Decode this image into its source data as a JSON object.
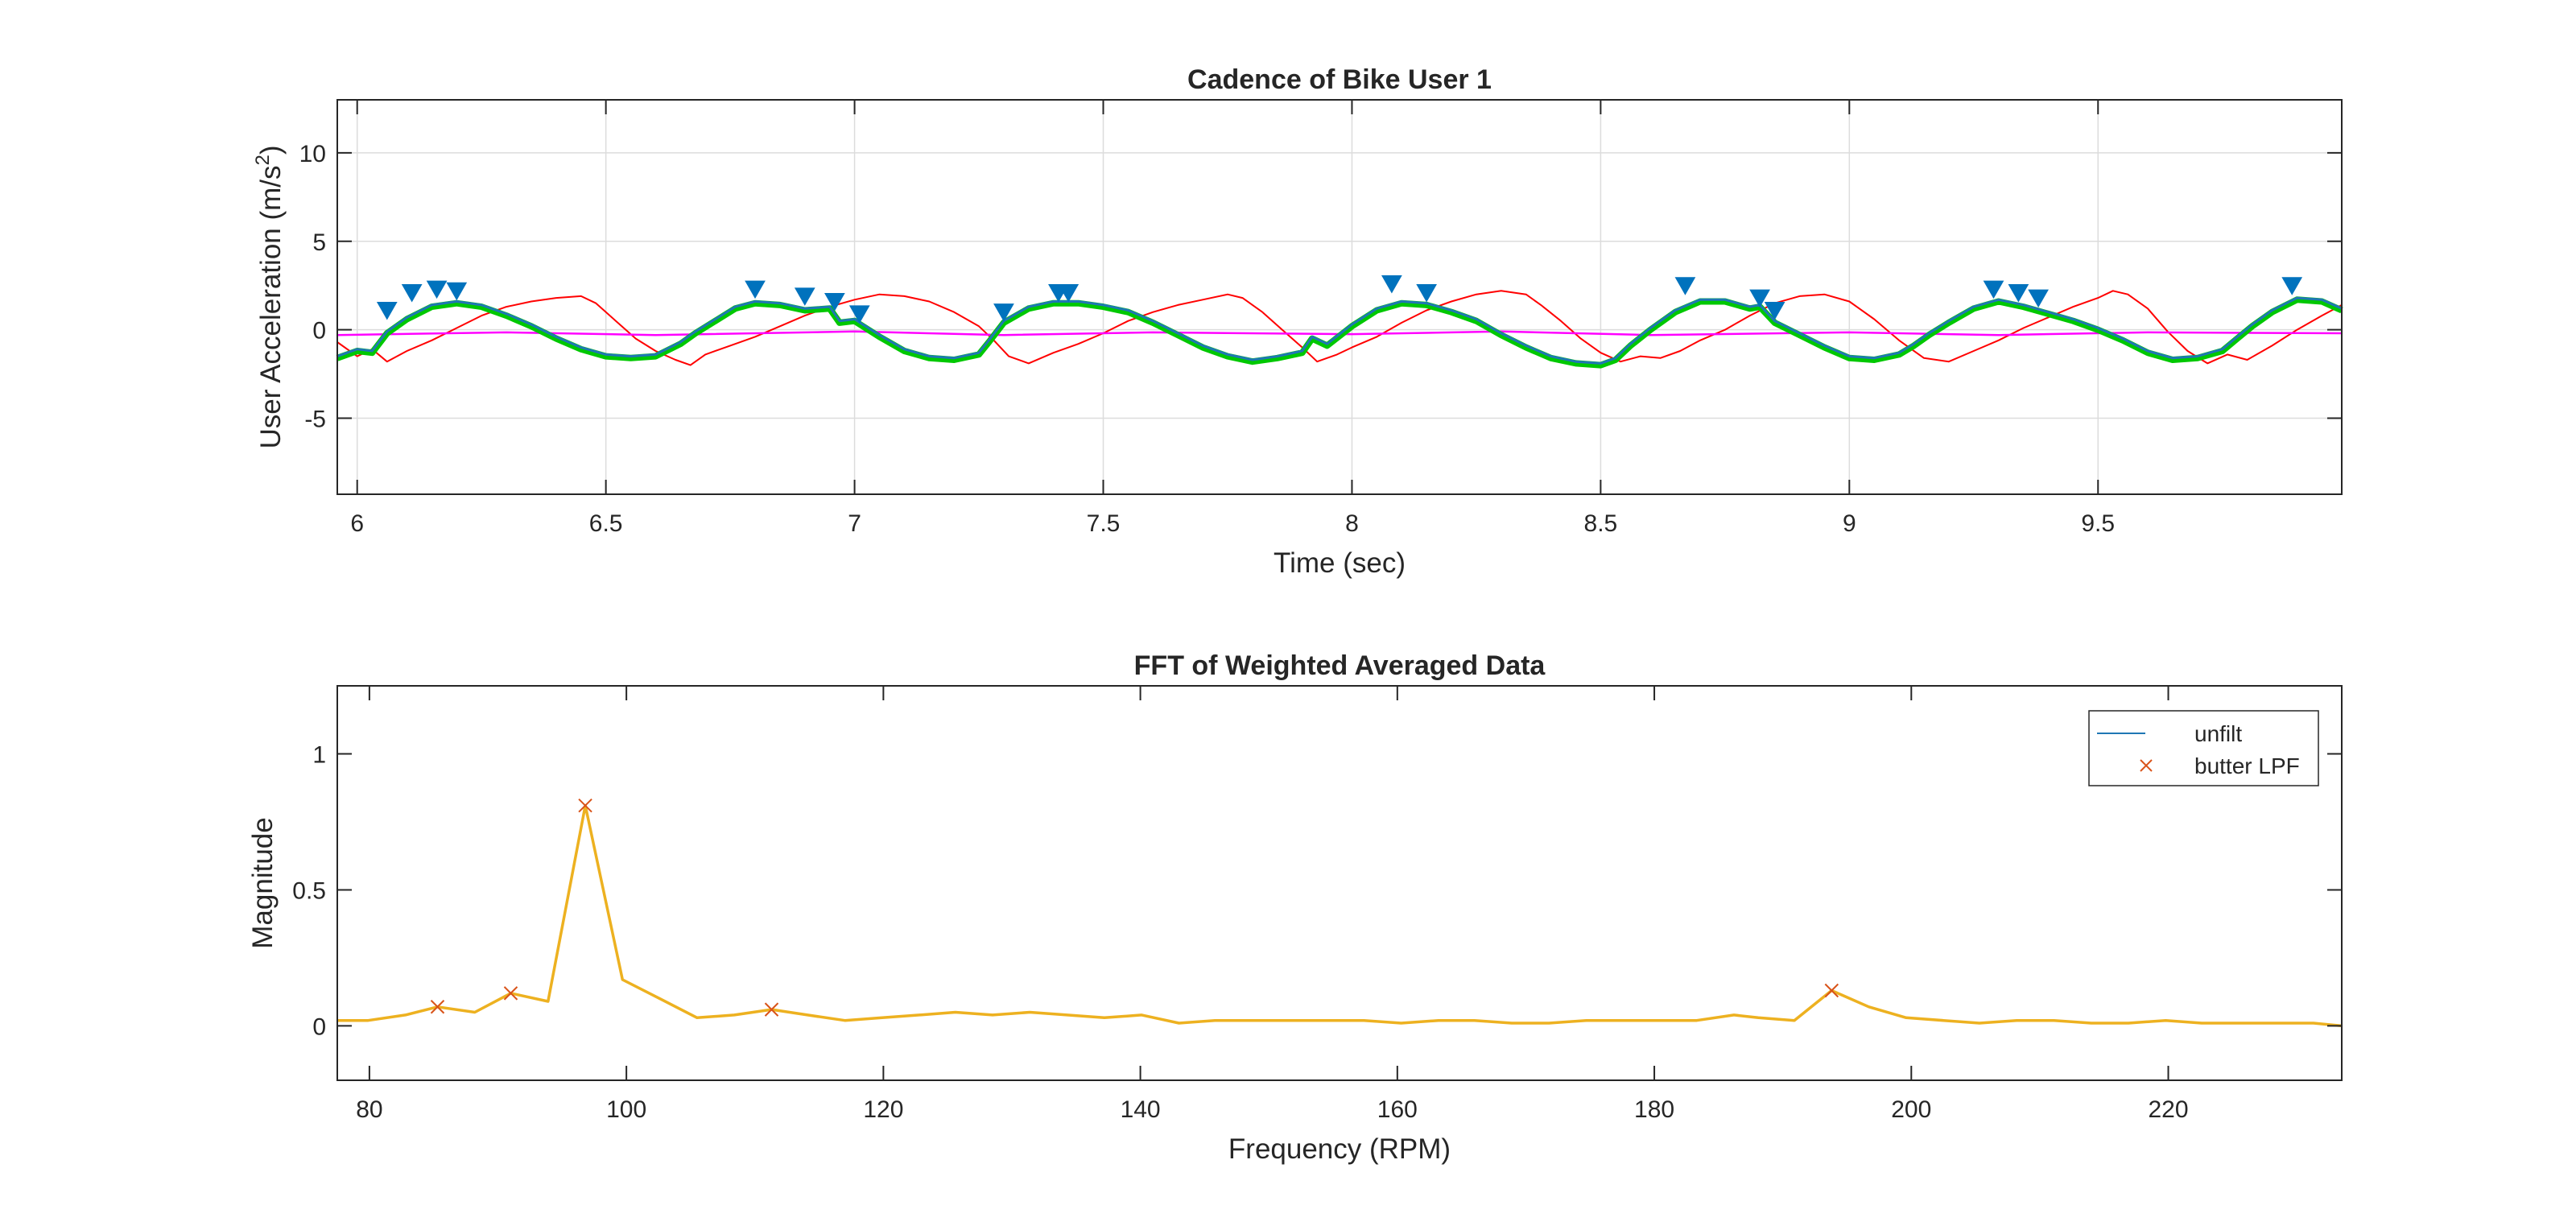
{
  "chart_data": [
    {
      "type": "line",
      "title": "Cadence of Bike User 1",
      "xlabel": "Time (sec)",
      "ylabel": "User Acceleration (m/s",
      "ylabel_sup": "2",
      "ylabel_end": ")",
      "xlim": [
        5.96,
        9.99
      ],
      "ylim": [
        -9.3,
        13
      ],
      "xticks": [
        6,
        6.5,
        7,
        7.5,
        8,
        8.5,
        9,
        9.5
      ],
      "xtick_labels": [
        "6",
        "6.5",
        "7",
        "7.5",
        "8",
        "8.5",
        "9",
        "9.5"
      ],
      "yticks": [
        -5,
        0,
        5,
        10
      ],
      "ytick_labels": [
        "-5",
        "0",
        "5",
        "10"
      ],
      "grid": true,
      "series": [
        {
          "color": "#ff0000",
          "x": [
            5.96,
            6.0,
            6.03,
            6.06,
            6.1,
            6.15,
            6.2,
            6.25,
            6.3,
            6.35,
            6.4,
            6.45,
            6.48,
            6.52,
            6.56,
            6.6,
            6.64,
            6.67,
            6.7,
            6.75,
            6.8,
            6.85,
            6.9,
            6.95,
            7.0,
            7.05,
            7.1,
            7.15,
            7.2,
            7.25,
            7.28,
            7.31,
            7.35,
            7.4,
            7.45,
            7.5,
            7.55,
            7.6,
            7.65,
            7.7,
            7.75,
            7.78,
            7.82,
            7.86,
            7.9,
            7.93,
            7.97,
            8.0,
            8.05,
            8.1,
            8.15,
            8.2,
            8.25,
            8.3,
            8.35,
            8.38,
            8.42,
            8.46,
            8.5,
            8.54,
            8.58,
            8.62,
            8.66,
            8.7,
            8.75,
            8.8,
            8.85,
            8.9,
            8.95,
            9.0,
            9.05,
            9.1,
            9.15,
            9.2,
            9.25,
            9.3,
            9.35,
            9.4,
            9.45,
            9.5,
            9.53,
            9.56,
            9.6,
            9.64,
            9.68,
            9.72,
            9.76,
            9.8,
            9.85,
            9.9,
            9.95,
            9.99
          ],
          "y": [
            -0.7,
            -1.5,
            -1.1,
            -1.8,
            -1.2,
            -0.6,
            0.1,
            0.8,
            1.3,
            1.6,
            1.8,
            1.9,
            1.5,
            0.5,
            -0.5,
            -1.2,
            -1.7,
            -2.0,
            -1.4,
            -0.9,
            -0.4,
            0.2,
            0.8,
            1.3,
            1.7,
            2.0,
            1.9,
            1.6,
            1.0,
            0.2,
            -0.6,
            -1.5,
            -1.9,
            -1.3,
            -0.8,
            -0.2,
            0.5,
            1.0,
            1.4,
            1.7,
            2.0,
            1.8,
            1.0,
            0.0,
            -1.0,
            -1.8,
            -1.4,
            -1.0,
            -0.4,
            0.4,
            1.1,
            1.6,
            2.0,
            2.2,
            2.0,
            1.4,
            0.5,
            -0.5,
            -1.3,
            -1.8,
            -1.5,
            -1.6,
            -1.2,
            -0.6,
            0.0,
            0.8,
            1.5,
            1.9,
            2.0,
            1.6,
            0.6,
            -0.6,
            -1.6,
            -1.8,
            -1.2,
            -0.6,
            0.1,
            0.7,
            1.3,
            1.8,
            2.2,
            2.0,
            1.2,
            -0.1,
            -1.2,
            -1.9,
            -1.4,
            -1.7,
            -0.9,
            0.0,
            0.8,
            1.4
          ]
        },
        {
          "color": "#ff00ff",
          "x": [
            5.96,
            6.3,
            6.6,
            7.0,
            7.3,
            7.6,
            8.0,
            8.3,
            8.6,
            9.0,
            9.3,
            9.6,
            9.99
          ],
          "y": [
            -0.3,
            -0.15,
            -0.3,
            -0.1,
            -0.3,
            -0.15,
            -0.25,
            -0.1,
            -0.3,
            -0.15,
            -0.3,
            -0.15,
            -0.2
          ]
        },
        {
          "color": "#00c800",
          "x": [
            5.96,
            6.0,
            6.03,
            6.06,
            6.1,
            6.15,
            6.2,
            6.25,
            6.3,
            6.35,
            6.4,
            6.45,
            6.5,
            6.55,
            6.6,
            6.65,
            6.68,
            6.72,
            6.76,
            6.8,
            6.85,
            6.9,
            6.95,
            6.97,
            7.0,
            7.05,
            7.1,
            7.15,
            7.2,
            7.25,
            7.27,
            7.3,
            7.35,
            7.4,
            7.45,
            7.5,
            7.55,
            7.6,
            7.65,
            7.7,
            7.75,
            7.8,
            7.85,
            7.9,
            7.92,
            7.95,
            8.0,
            8.05,
            8.1,
            8.15,
            8.2,
            8.25,
            8.3,
            8.35,
            8.4,
            8.45,
            8.5,
            8.53,
            8.56,
            8.6,
            8.65,
            8.7,
            8.75,
            8.8,
            8.82,
            8.85,
            8.9,
            8.95,
            9.0,
            9.05,
            9.1,
            9.13,
            9.16,
            9.2,
            9.25,
            9.3,
            9.35,
            9.4,
            9.45,
            9.5,
            9.55,
            9.6,
            9.65,
            9.7,
            9.75,
            9.78,
            9.81,
            9.85,
            9.9,
            9.95,
            9.99
          ],
          "y": [
            -1.6,
            -1.2,
            -1.3,
            -0.2,
            0.6,
            1.3,
            1.5,
            1.3,
            0.8,
            0.2,
            -0.5,
            -1.1,
            -1.5,
            -1.6,
            -1.5,
            -0.8,
            -0.2,
            0.5,
            1.2,
            1.5,
            1.4,
            1.1,
            1.2,
            0.4,
            0.5,
            -0.4,
            -1.2,
            -1.6,
            -1.7,
            -1.4,
            -0.7,
            0.4,
            1.2,
            1.5,
            1.5,
            1.3,
            1.0,
            0.4,
            -0.3,
            -1.0,
            -1.5,
            -1.8,
            -1.6,
            -1.3,
            -0.5,
            -0.9,
            0.2,
            1.1,
            1.5,
            1.4,
            1.0,
            0.5,
            -0.3,
            -1.0,
            -1.6,
            -1.9,
            -2.0,
            -1.7,
            -0.9,
            0.0,
            1.0,
            1.6,
            1.6,
            1.2,
            1.3,
            0.4,
            -0.3,
            -1.0,
            -1.6,
            -1.7,
            -1.4,
            -0.9,
            -0.3,
            0.4,
            1.2,
            1.6,
            1.3,
            0.9,
            0.5,
            0.0,
            -0.6,
            -1.3,
            -1.7,
            -1.6,
            -1.2,
            -0.5,
            0.2,
            1.0,
            1.7,
            1.6,
            1.1
          ]
        },
        {
          "color": "#1f77b4",
          "x": [
            5.96,
            6.0,
            6.03,
            6.06,
            6.1,
            6.15,
            6.2,
            6.25,
            6.3,
            6.35,
            6.4,
            6.45,
            6.5,
            6.55,
            6.6,
            6.65,
            6.68,
            6.72,
            6.76,
            6.8,
            6.85,
            6.9,
            6.95,
            6.97,
            7.0,
            7.05,
            7.1,
            7.15,
            7.2,
            7.25,
            7.27,
            7.3,
            7.35,
            7.4,
            7.45,
            7.5,
            7.55,
            7.6,
            7.65,
            7.7,
            7.75,
            7.8,
            7.85,
            7.9,
            7.92,
            7.95,
            8.0,
            8.05,
            8.1,
            8.15,
            8.2,
            8.25,
            8.3,
            8.35,
            8.4,
            8.45,
            8.5,
            8.53,
            8.56,
            8.6,
            8.65,
            8.7,
            8.75,
            8.8,
            8.82,
            8.85,
            8.9,
            8.95,
            9.0,
            9.05,
            9.1,
            9.13,
            9.16,
            9.2,
            9.25,
            9.3,
            9.35,
            9.4,
            9.45,
            9.5,
            9.55,
            9.6,
            9.65,
            9.7,
            9.75,
            9.78,
            9.81,
            9.85,
            9.9,
            9.95,
            9.99
          ],
          "y": [
            -1.5,
            -1.1,
            -1.2,
            -0.1,
            0.7,
            1.4,
            1.6,
            1.4,
            0.9,
            0.3,
            -0.4,
            -1.0,
            -1.4,
            -1.5,
            -1.4,
            -0.7,
            -0.1,
            0.6,
            1.3,
            1.6,
            1.5,
            1.2,
            1.3,
            0.5,
            0.6,
            -0.3,
            -1.1,
            -1.5,
            -1.6,
            -1.3,
            -0.6,
            0.5,
            1.3,
            1.6,
            1.6,
            1.4,
            1.1,
            0.5,
            -0.2,
            -0.9,
            -1.4,
            -1.7,
            -1.5,
            -1.2,
            -0.4,
            -0.8,
            0.3,
            1.2,
            1.6,
            1.5,
            1.1,
            0.6,
            -0.2,
            -0.9,
            -1.5,
            -1.8,
            -1.9,
            -1.6,
            -0.8,
            0.1,
            1.1,
            1.7,
            1.7,
            1.3,
            1.4,
            0.5,
            -0.2,
            -0.9,
            -1.5,
            -1.6,
            -1.3,
            -0.8,
            -0.2,
            0.5,
            1.3,
            1.7,
            1.4,
            1.0,
            0.6,
            0.1,
            -0.5,
            -1.2,
            -1.6,
            -1.5,
            -1.1,
            -0.4,
            0.3,
            1.1,
            1.8,
            1.7,
            1.2
          ]
        }
      ],
      "peaks": {
        "marker": "triangle-down",
        "color": "#0072bd",
        "x": [
          6.06,
          6.11,
          6.16,
          6.2,
          6.8,
          6.9,
          6.96,
          7.01,
          7.3,
          7.41,
          7.43,
          8.08,
          8.15,
          8.67,
          8.82,
          8.85,
          9.29,
          9.34,
          9.38,
          9.89
        ],
        "y": [
          1.1,
          2.1,
          2.3,
          2.2,
          2.3,
          1.9,
          1.6,
          0.9,
          1.0,
          2.1,
          2.1,
          2.6,
          2.1,
          2.5,
          1.8,
          1.1,
          2.3,
          2.1,
          1.8,
          2.5
        ]
      }
    },
    {
      "type": "line",
      "title": "FFT of Weighted Averaged Data",
      "xlabel": "Frequency (RPM)",
      "ylabel": "Magnitude",
      "xlim": [
        77.5,
        233.5
      ],
      "ylim": [
        -0.2,
        1.25
      ],
      "xticks": [
        80,
        100,
        120,
        140,
        160,
        180,
        200,
        220
      ],
      "xtick_labels": [
        "80",
        "100",
        "120",
        "140",
        "160",
        "180",
        "200",
        "220"
      ],
      "yticks": [
        0,
        0.5,
        1
      ],
      "ytick_labels": [
        "0",
        "0.5",
        "1"
      ],
      "grid": false,
      "legend": {
        "location": "top-right",
        "entries": [
          "unfilt",
          "butter LPF"
        ]
      },
      "series": [
        {
          "name": "unfilt",
          "color": "#edb120",
          "x": [
            77.5,
            79.9,
            82.8,
            85.3,
            88.2,
            91.0,
            93.9,
            96.8,
            99.7,
            102.6,
            105.5,
            108.4,
            111.3,
            114.1,
            117.0,
            119.9,
            122.8,
            125.6,
            128.5,
            131.4,
            134.3,
            137.2,
            140.1,
            143.0,
            145.8,
            148.7,
            151.6,
            154.5,
            157.4,
            160.3,
            163.2,
            166.0,
            168.9,
            171.8,
            174.7,
            177.6,
            180.5,
            183.3,
            186.2,
            188.1,
            190.9,
            193.8,
            196.7,
            199.6,
            202.5,
            205.3,
            208.2,
            211.1,
            214.0,
            216.9,
            219.8,
            222.6,
            225.5,
            228.4,
            231.3,
            233.5
          ],
          "y": [
            0.02,
            0.02,
            0.04,
            0.07,
            0.05,
            0.12,
            0.09,
            0.81,
            0.17,
            0.1,
            0.03,
            0.04,
            0.06,
            0.04,
            0.02,
            0.03,
            0.04,
            0.05,
            0.04,
            0.05,
            0.04,
            0.03,
            0.04,
            0.01,
            0.02,
            0.02,
            0.02,
            0.02,
            0.02,
            0.01,
            0.02,
            0.02,
            0.01,
            0.01,
            0.02,
            0.02,
            0.02,
            0.02,
            0.04,
            0.03,
            0.02,
            0.13,
            0.07,
            0.03,
            0.02,
            0.01,
            0.02,
            0.02,
            0.01,
            0.01,
            0.02,
            0.01,
            0.01,
            0.01,
            0.01,
            0.0
          ]
        },
        {
          "name": "butter LPF",
          "color": "#d95319",
          "marker": "x",
          "x": [
            85.3,
            91.0,
            96.8,
            111.3,
            193.8
          ],
          "y": [
            0.07,
            0.12,
            0.81,
            0.06,
            0.13
          ]
        }
      ]
    }
  ]
}
